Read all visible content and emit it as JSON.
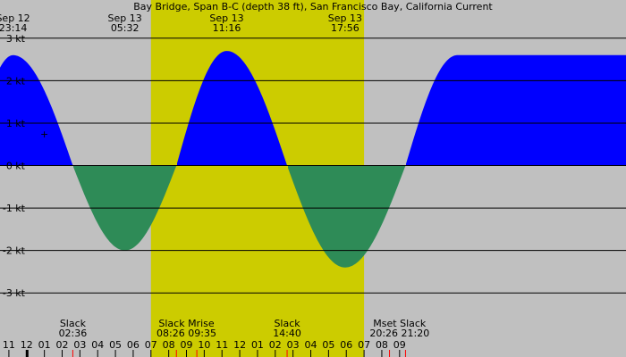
{
  "chart_data": {
    "type": "area",
    "title": "Bay Bridge, Span B-C (depth 38 ft), San Francisco Bay, California Current",
    "xlabel": "",
    "ylabel": "",
    "unit": "kt",
    "ylim": [
      -3.5,
      3.9
    ],
    "xlim": [
      "Sep 12 22:30",
      "Sep 14 09:45"
    ],
    "grid": true,
    "colors": {
      "background": "#c0c0c0",
      "daylight": "#cccc00",
      "flood": "#0000ff",
      "ebb": "#2e8b57",
      "grid": "#000000",
      "tick_major": "#000000",
      "tick_event": "#ff0000"
    },
    "daylight_band": {
      "start": "Sep 13 07:00",
      "end": "Sep 13 19:00"
    },
    "series": [
      {
        "points": [
          {
            "time": "Sep 12 23:14",
            "value": 2.6
          },
          {
            "time": "Sep 13 02:36",
            "value": 0.0
          },
          {
            "time": "Sep 13 05:32",
            "value": -2.0
          },
          {
            "time": "Sep 13 08:26",
            "value": 0.0
          },
          {
            "time": "Sep 13 11:16",
            "value": 2.7
          },
          {
            "time": "Sep 13 14:40",
            "value": 0.0
          },
          {
            "time": "Sep 13 17:56",
            "value": -2.4
          },
          {
            "time": "Sep 13 21:20",
            "value": 0.0
          },
          {
            "time": "Sep 14 00:15",
            "value": 2.6
          }
        ]
      }
    ],
    "yticks": [
      {
        "value": 3,
        "label": "3 kt"
      },
      {
        "value": 2,
        "label": "2 kt"
      },
      {
        "value": 1,
        "label": "1 kt"
      },
      {
        "value": 0,
        "label": "0 kt"
      },
      {
        "value": -1,
        "label": "-1 kt"
      },
      {
        "value": -2,
        "label": "-2 kt"
      },
      {
        "value": -3,
        "label": "-3 kt"
      }
    ],
    "top_labels": [
      {
        "time": "Sep 12 23:14",
        "date": "Sep 12",
        "clock": "23:14"
      },
      {
        "time": "Sep 13 05:32",
        "date": "Sep 13",
        "clock": "05:32"
      },
      {
        "time": "Sep 13 11:16",
        "date": "Sep 13",
        "clock": "11:16"
      },
      {
        "time": "Sep 13 17:56",
        "date": "Sep 13",
        "clock": "17:56"
      }
    ],
    "bottom_labels": [
      {
        "time": "Sep 13 02:36",
        "label": "Slack",
        "clock": "02:36"
      },
      {
        "time": "Sep 13 09:00",
        "label": "Slack Mrise",
        "clock": "08:26 09:35"
      },
      {
        "time": "Sep 13 14:40",
        "label": "Slack",
        "clock": "14:40"
      },
      {
        "time": "Sep 13 21:00",
        "label": "Mset Slack",
        "clock": "20:26 21:20"
      }
    ],
    "hour_ticks": [
      {
        "time": "Sep 12 23:00",
        "label": "11"
      },
      {
        "time": "Sep 13 00:00",
        "label": "12"
      },
      {
        "time": "Sep 13 01:00",
        "label": "01"
      },
      {
        "time": "Sep 13 02:00",
        "label": "02"
      },
      {
        "time": "Sep 13 03:00",
        "label": "03"
      },
      {
        "time": "Sep 13 04:00",
        "label": "04"
      },
      {
        "time": "Sep 13 05:00",
        "label": "05"
      },
      {
        "time": "Sep 13 06:00",
        "label": "06"
      },
      {
        "time": "Sep 13 07:00",
        "label": "07"
      },
      {
        "time": "Sep 13 08:00",
        "label": "08"
      },
      {
        "time": "Sep 13 09:00",
        "label": "09"
      },
      {
        "time": "Sep 13 10:00",
        "label": "10"
      },
      {
        "time": "Sep 13 11:00",
        "label": "11"
      },
      {
        "time": "Sep 13 12:00",
        "label": "12"
      },
      {
        "time": "Sep 13 13:00",
        "label": "01"
      },
      {
        "time": "Sep 13 14:00",
        "label": "02"
      },
      {
        "time": "Sep 13 15:00",
        "label": "03"
      },
      {
        "time": "Sep 13 16:00",
        "label": "04"
      },
      {
        "time": "Sep 13 17:00",
        "label": "05"
      },
      {
        "time": "Sep 13 18:00",
        "label": "06"
      },
      {
        "time": "Sep 13 19:00",
        "label": "07"
      },
      {
        "time": "Sep 13 20:00",
        "label": "08"
      },
      {
        "time": "Sep 13 21:00",
        "label": "09"
      }
    ],
    "event_ticks": [
      "Sep 13 02:36",
      "Sep 13 08:26",
      "Sep 13 09:35",
      "Sep 13 14:40",
      "Sep 13 20:26",
      "Sep 13 21:20"
    ],
    "marker": {
      "time": "Sep 13 01:00",
      "value": 0.75,
      "symbol": "+"
    }
  }
}
